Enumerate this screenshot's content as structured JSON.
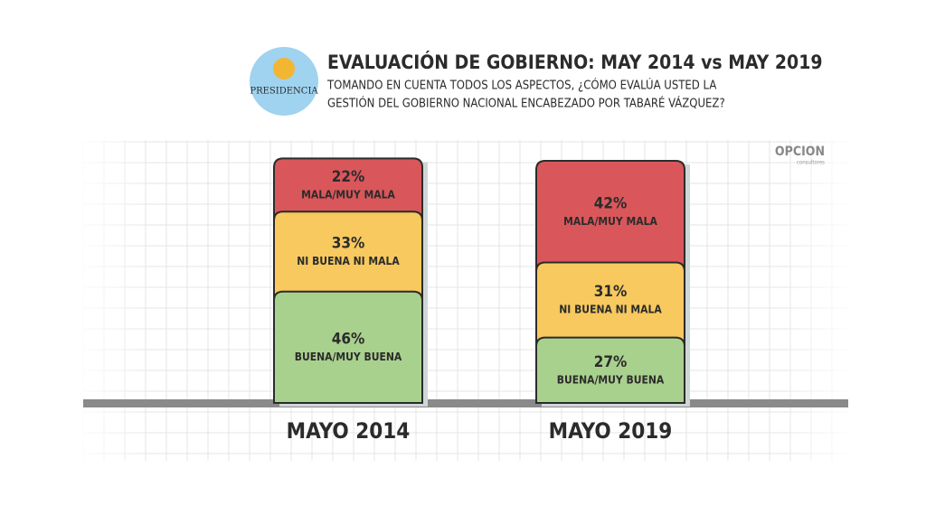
{
  "chart_data": {
    "type": "stacked-bar",
    "title": "EVALUACIÓN DE GOBIERNO: MAY 2014 vs MAY 2019",
    "subtitle": [
      "TOMANDO EN CUENTA TODOS LOS ASPECTOS, ¿CÓMO EVALÚA USTED LA",
      "GESTIÓN DEL GOBIERNO NACIONAL ENCABEZADO POR TABARÉ VÁZQUEZ?"
    ],
    "logos": {
      "left": "PRESIDENCIA",
      "right": "OPCION",
      "right_sub": "consultores"
    },
    "categories": [
      "MAYO 2014",
      "MAYO 2019"
    ],
    "series": [
      {
        "name": "BUENA/MUY BUENA",
        "color": "#a9d18e",
        "values": [
          46,
          27
        ],
        "value_labels": [
          "46%",
          "27%"
        ]
      },
      {
        "name": "NI BUENA NI MALA",
        "color": "#f7c95e",
        "values": [
          33,
          31
        ],
        "value_labels": [
          "33%",
          "31%"
        ]
      },
      {
        "name": "MALA/MUY MALA",
        "color": "#d9575a",
        "values": [
          22,
          42
        ],
        "value_labels": [
          "22%",
          "42%"
        ]
      }
    ]
  }
}
